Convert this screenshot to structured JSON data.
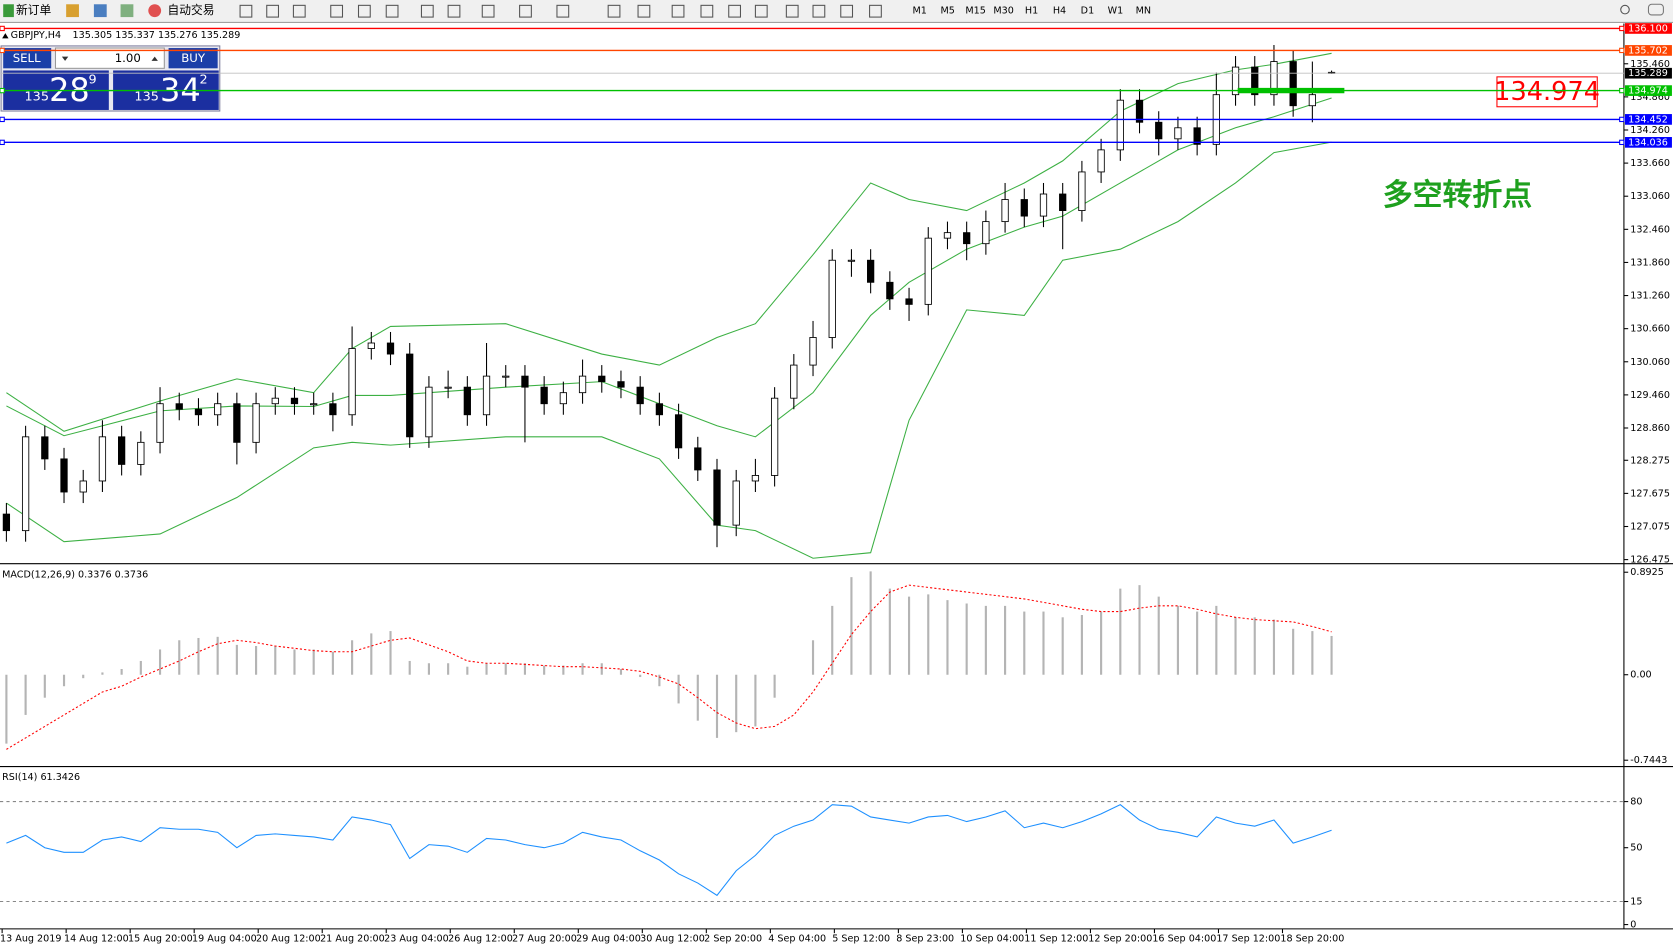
{
  "toolbar": {
    "new_order": "新订单",
    "auto_trade": "自动交易",
    "timeframes": [
      "M1",
      "M5",
      "M15",
      "M30",
      "H1",
      "H4",
      "D1",
      "W1",
      "MN"
    ]
  },
  "trade_panel": {
    "sell": "SELL",
    "buy": "BUY",
    "lot": "1.00",
    "bid_big": "135",
    "bid_pips": "28",
    "bid_frac": "9",
    "ask_big": "135",
    "ask_pips": "34",
    "ask_frac": "2"
  },
  "chart_data": {
    "type": "candlestick",
    "title": "GBPJPY,H4",
    "ohlc_label": "135.305 135.337 135.276 135.289",
    "price_label": "134.974",
    "note": "多空转折点",
    "ylim": [
      126.42,
      136.19
    ],
    "yticks": [
      {
        "value": 135.46,
        "label": "135.460"
      },
      {
        "value": 134.86,
        "label": "134.860"
      },
      {
        "value": 134.26,
        "label": "134.260"
      },
      {
        "value": 133.66,
        "label": "133.660"
      },
      {
        "value": 133.06,
        "label": "133.060"
      },
      {
        "value": 132.46,
        "label": "132.460"
      },
      {
        "value": 131.86,
        "label": "131.860"
      },
      {
        "value": 131.26,
        "label": "131.260"
      },
      {
        "value": 130.66,
        "label": "130.660"
      },
      {
        "value": 130.06,
        "label": "130.060"
      },
      {
        "value": 129.46,
        "label": "129.460"
      },
      {
        "value": 128.86,
        "label": "128.860"
      },
      128.275,
      127.675,
      127.075,
      126.475
    ],
    "open": [
      127.3,
      127.0,
      128.7,
      128.3,
      127.7,
      127.9,
      128.7,
      128.2,
      128.6,
      129.3,
      129.2,
      129.1,
      129.3,
      128.6,
      129.3,
      129.4,
      129.3,
      129.3,
      129.1,
      130.3,
      130.4,
      130.2,
      128.7,
      129.6,
      129.6,
      129.1,
      129.8,
      129.8,
      129.6,
      129.3,
      129.5,
      129.8,
      129.7,
      129.6,
      129.3,
      129.1,
      128.5,
      128.1,
      127.1,
      127.9,
      128.0,
      129.4,
      130.0,
      130.5,
      131.9,
      131.9,
      131.5,
      131.2,
      131.1,
      132.3,
      132.4,
      132.2,
      132.6,
      133.0,
      132.7,
      133.1,
      132.8,
      133.5,
      133.9,
      134.8,
      134.4,
      134.1,
      134.3,
      134.0,
      134.9,
      135.4,
      134.9,
      135.5,
      134.7,
      135.305
    ],
    "high": [
      127.5,
      128.9,
      128.9,
      128.5,
      128.1,
      129.0,
      128.9,
      128.8,
      129.6,
      129.5,
      129.4,
      129.5,
      129.5,
      129.5,
      129.6,
      129.6,
      129.5,
      129.5,
      130.7,
      130.6,
      130.6,
      130.4,
      129.8,
      129.9,
      129.8,
      130.4,
      130.0,
      130.0,
      129.8,
      129.7,
      130.1,
      130.0,
      129.9,
      129.8,
      129.5,
      129.3,
      128.7,
      128.3,
      128.1,
      128.3,
      129.6,
      130.2,
      130.8,
      132.1,
      132.1,
      132.1,
      131.7,
      131.4,
      132.5,
      132.6,
      132.6,
      132.8,
      133.3,
      133.2,
      133.3,
      133.3,
      133.7,
      134.1,
      135.0,
      135.0,
      134.6,
      134.5,
      134.5,
      135.3,
      135.6,
      135.6,
      135.8,
      135.7,
      135.5,
      135.337
    ],
    "low": [
      126.8,
      126.8,
      128.1,
      127.5,
      127.5,
      127.7,
      128.0,
      128.0,
      128.4,
      129.0,
      128.9,
      128.9,
      128.2,
      128.4,
      129.1,
      129.1,
      129.1,
      128.8,
      128.9,
      130.1,
      130.0,
      128.5,
      128.5,
      129.4,
      128.9,
      128.9,
      129.6,
      128.6,
      129.1,
      129.1,
      129.3,
      129.5,
      129.4,
      129.1,
      128.9,
      128.3,
      127.9,
      126.7,
      126.9,
      127.7,
      127.8,
      129.2,
      129.8,
      130.3,
      131.6,
      131.3,
      131.0,
      130.8,
      130.9,
      132.1,
      131.9,
      132.0,
      132.4,
      132.5,
      132.5,
      132.1,
      132.6,
      133.3,
      133.7,
      134.2,
      133.8,
      133.9,
      133.8,
      133.8,
      134.7,
      134.7,
      134.7,
      134.5,
      134.4,
      135.276
    ],
    "close": [
      127.0,
      128.7,
      128.3,
      127.7,
      127.9,
      128.7,
      128.2,
      128.6,
      129.3,
      129.2,
      129.1,
      129.3,
      128.6,
      129.3,
      129.4,
      129.3,
      129.3,
      129.1,
      130.3,
      130.4,
      130.2,
      128.7,
      129.6,
      129.6,
      129.1,
      129.8,
      129.8,
      129.6,
      129.3,
      129.5,
      129.8,
      129.7,
      129.6,
      129.3,
      129.1,
      128.5,
      128.1,
      127.1,
      127.9,
      128.0,
      129.4,
      130.0,
      130.5,
      131.9,
      131.9,
      131.5,
      131.2,
      131.1,
      132.3,
      132.4,
      132.2,
      132.6,
      133.0,
      132.7,
      133.1,
      132.8,
      133.5,
      133.9,
      134.8,
      134.4,
      134.1,
      134.3,
      134.0,
      134.9,
      135.4,
      134.9,
      135.5,
      134.7,
      134.9,
      135.289
    ],
    "bands": [
      {
        "color": "#3cb043",
        "x": [
          0,
          3,
          8,
          12,
          16,
          18,
          20,
          26,
          31,
          34,
          37,
          39,
          42,
          45,
          47,
          50,
          53,
          55,
          58,
          61,
          64,
          66,
          69
        ],
        "values": [
          129.5,
          128.8,
          129.35,
          129.75,
          129.5,
          130.3,
          130.7,
          130.75,
          130.2,
          130.0,
          130.5,
          130.75,
          132.0,
          133.3,
          133.0,
          132.8,
          133.3,
          133.7,
          134.6,
          135.1,
          135.35,
          135.45,
          135.65
        ]
      },
      {
        "color": "#3cb043",
        "x": [
          0,
          3,
          8,
          12,
          16,
          18,
          20,
          26,
          31,
          34,
          37,
          39,
          42,
          45,
          47,
          50,
          53,
          55,
          58,
          61,
          64,
          66,
          69
        ],
        "values": [
          129.26,
          128.72,
          129.17,
          129.26,
          129.25,
          129.45,
          129.45,
          129.6,
          129.7,
          129.3,
          128.9,
          128.7,
          129.5,
          130.9,
          131.5,
          132.1,
          132.5,
          132.7,
          133.3,
          133.9,
          134.3,
          134.5,
          134.84
        ]
      },
      {
        "color": "#3cb043",
        "x": [
          0,
          3,
          8,
          12,
          16,
          18,
          20,
          26,
          31,
          34,
          37,
          39,
          42,
          45,
          47,
          50,
          53,
          55,
          58,
          61,
          64,
          66,
          69
        ],
        "values": [
          127.5,
          126.8,
          126.94,
          127.6,
          128.5,
          128.6,
          128.55,
          128.7,
          128.7,
          128.3,
          127.1,
          127.0,
          126.5,
          126.6,
          129.0,
          131.0,
          130.9,
          131.9,
          132.1,
          132.6,
          133.3,
          133.85,
          134.04
        ]
      }
    ],
    "levels": [
      {
        "value": 136.1,
        "label": "136.100",
        "color": "#ff0000"
      },
      {
        "value": 135.702,
        "label": "135.702",
        "color": "#ff4500"
      },
      {
        "value": 134.974,
        "label": "134.974",
        "color": "#00c000",
        "segment": true
      },
      {
        "value": 134.452,
        "label": "134.452",
        "color": "#0000ff"
      },
      {
        "value": 134.036,
        "label": "134.036",
        "color": "#0000ff"
      }
    ],
    "bid": {
      "value": 135.289,
      "label": "135.289",
      "color": "#c0c0c0"
    },
    "time_labels": [
      "13 Aug 2019",
      "14 Aug 12:00",
      "15 Aug 20:00",
      "19 Aug 04:00",
      "20 Aug 12:00",
      "21 Aug 20:00",
      "23 Aug 04:00",
      "26 Aug 12:00",
      "27 Aug 20:00",
      "29 Aug 04:00",
      "30 Aug 12:00",
      "2 Sep 20:00",
      "4 Sep 04:00",
      "5 Sep 12:00",
      "8 Sep 23:00",
      "10 Sep 04:00",
      "11 Sep 12:00",
      "12 Sep 20:00",
      "16 Sep 04:00",
      "17 Sep 12:00",
      "18 Sep 20:00"
    ],
    "macd": {
      "label": "MACD(12,26,9) 0.3376 0.3736",
      "ylim": [
        -0.781,
        0.948
      ],
      "yticks": [
        0.8925,
        {
          "value": 0,
          "label": "0.00"
        },
        -0.7443
      ],
      "hist_color": "#b4b4b4",
      "signal_color": "#ff0000",
      "hist": [
        -0.6,
        -0.35,
        -0.2,
        -0.1,
        -0.03,
        0.02,
        0.05,
        0.12,
        0.22,
        0.3,
        0.32,
        0.33,
        0.26,
        0.25,
        0.25,
        0.22,
        0.22,
        0.2,
        0.3,
        0.36,
        0.38,
        0.12,
        0.1,
        0.1,
        0.07,
        0.1,
        0.1,
        0.1,
        0.08,
        0.08,
        0.1,
        0.1,
        0.05,
        -0.02,
        -0.1,
        -0.25,
        -0.4,
        -0.55,
        -0.5,
        -0.45,
        -0.2,
        0.0,
        0.3,
        0.6,
        0.85,
        0.9,
        0.75,
        0.68,
        0.7,
        0.65,
        0.62,
        0.6,
        0.6,
        0.55,
        0.55,
        0.5,
        0.52,
        0.55,
        0.75,
        0.78,
        0.68,
        0.6,
        0.55,
        0.6,
        0.5,
        0.5,
        0.48,
        0.4,
        0.38,
        0.3376
      ],
      "signal": [
        -0.65,
        -0.55,
        -0.45,
        -0.35,
        -0.25,
        -0.15,
        -0.1,
        -0.02,
        0.05,
        0.12,
        0.2,
        0.27,
        0.3,
        0.28,
        0.25,
        0.23,
        0.21,
        0.2,
        0.2,
        0.25,
        0.3,
        0.32,
        0.26,
        0.2,
        0.12,
        0.1,
        0.1,
        0.09,
        0.08,
        0.07,
        0.07,
        0.06,
        0.05,
        0.03,
        -0.02,
        -0.08,
        -0.2,
        -0.33,
        -0.42,
        -0.47,
        -0.45,
        -0.35,
        -0.15,
        0.1,
        0.35,
        0.55,
        0.72,
        0.78,
        0.76,
        0.74,
        0.72,
        0.7,
        0.68,
        0.66,
        0.63,
        0.6,
        0.57,
        0.55,
        0.55,
        0.58,
        0.6,
        0.6,
        0.57,
        0.53,
        0.5,
        0.48,
        0.47,
        0.46,
        0.42,
        0.3736
      ]
    },
    "rsi": {
      "label": "RSI(14) 61.3426",
      "ylim": [
        0,
        100
      ],
      "yticks": [
        80,
        50,
        15,
        0
      ],
      "levels": [
        80,
        15
      ],
      "color": "#1e90ff",
      "values": [
        53,
        58,
        50,
        47,
        47,
        55,
        57,
        54,
        63,
        62,
        62,
        60,
        50,
        58,
        59,
        58,
        57,
        55,
        70,
        68,
        65,
        43,
        52,
        51,
        47,
        56,
        55,
        52,
        50,
        53,
        60,
        57,
        55,
        48,
        42,
        33,
        27,
        19,
        35,
        45,
        58,
        64,
        68,
        78,
        77,
        70,
        68,
        66,
        70,
        71,
        67,
        70,
        74,
        63,
        66,
        63,
        67,
        72,
        78,
        68,
        62,
        60,
        57,
        70,
        66,
        64,
        68,
        53,
        57,
        61.3426
      ]
    }
  }
}
